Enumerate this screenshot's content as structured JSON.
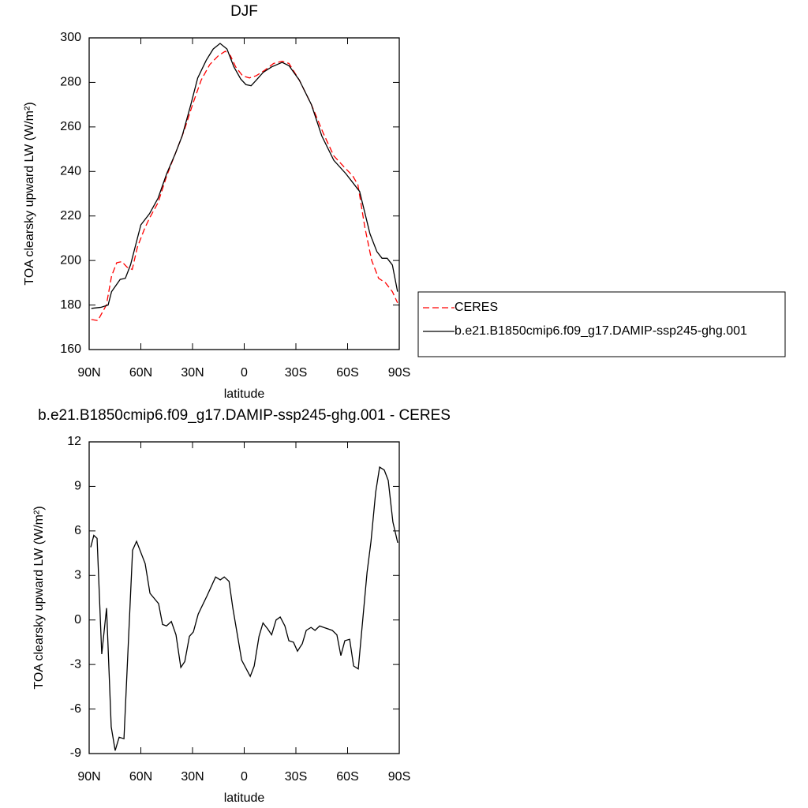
{
  "chart_data": [
    {
      "type": "line",
      "title": "DJF",
      "xlabel": "latitude",
      "ylabel": "TOA clearsky upward LW (W/m²)",
      "xlim": [
        90,
        -90
      ],
      "ylim": [
        160,
        300
      ],
      "xticks": [
        {
          "value": 90,
          "label": "90N"
        },
        {
          "value": 60,
          "label": "60N"
        },
        {
          "value": 30,
          "label": "30N"
        },
        0,
        {
          "value": -30,
          "label": "30S"
        },
        {
          "value": -60,
          "label": "60S"
        },
        {
          "value": -90,
          "label": "90S"
        }
      ],
      "yticks": [
        160,
        180,
        200,
        220,
        240,
        260,
        280,
        300
      ],
      "legend": "right",
      "series": [
        {
          "name": "CERES",
          "color": "#ff0000",
          "dash": "dashed",
          "x": [
            88.75,
            85,
            80,
            77,
            74,
            71,
            68,
            65,
            62,
            58,
            55,
            50,
            45,
            40,
            35,
            30,
            25,
            20,
            15,
            11,
            8,
            5,
            1,
            -3,
            -7,
            -12,
            -17,
            -22,
            -26,
            -32,
            -39,
            -46,
            -52,
            -58,
            -63,
            -66,
            -70,
            -74,
            -78,
            -82,
            -86,
            -89
          ],
          "values": [
            173.5,
            173,
            180,
            193,
            199,
            199.5,
            197,
            196,
            206,
            214,
            219,
            226,
            238,
            248,
            258,
            270,
            281,
            288,
            292,
            294,
            292,
            287,
            283,
            282,
            283,
            285.5,
            288.5,
            289.5,
            288.5,
            281,
            270,
            257,
            247,
            242,
            238,
            234,
            215,
            200,
            192,
            190,
            186,
            181
          ]
        },
        {
          "name": "b.e21.B1850cmip6.f09_g17.DAMIP-ssp245-ghg.001",
          "color": "#000000",
          "dash": "solid",
          "x": [
            88.75,
            83,
            79,
            77,
            72,
            69,
            66,
            60,
            55,
            50,
            45,
            40,
            36,
            31,
            27,
            22,
            18,
            14,
            10,
            6,
            2,
            -1,
            -4,
            -7,
            -11,
            -16,
            -22,
            -26,
            -32,
            -39,
            -45,
            -52,
            -59,
            -64,
            -67,
            -73,
            -77,
            -80,
            -83,
            -86,
            -89
          ],
          "values": [
            178.5,
            179,
            180,
            186,
            191.5,
            192,
            198,
            216,
            221,
            228,
            239,
            248,
            256,
            270,
            282,
            290,
            295,
            297.5,
            295,
            287,
            281.5,
            279,
            278.5,
            281,
            284.5,
            287,
            289,
            287.5,
            281,
            270,
            256,
            245,
            239,
            234,
            231,
            212,
            204,
            201,
            201,
            198,
            186
          ]
        }
      ]
    },
    {
      "type": "line",
      "title": "b.e21.B1850cmip6.f09_g17.DAMIP-ssp245-ghg.001 - CERES",
      "xlabel": "latitude",
      "ylabel": "TOA clearsky upward LW (W/m²)",
      "xlim": [
        90,
        -90
      ],
      "ylim": [
        -9,
        12
      ],
      "xticks": [
        {
          "value": 90,
          "label": "90N"
        },
        {
          "value": 60,
          "label": "60N"
        },
        {
          "value": 30,
          "label": "30N"
        },
        0,
        {
          "value": -30,
          "label": "30S"
        },
        {
          "value": -60,
          "label": "60S"
        },
        {
          "value": -90,
          "label": "90S"
        }
      ],
      "yticks": [
        -9,
        -6,
        -3,
        0,
        3,
        6,
        9,
        12
      ],
      "series": [
        {
          "color": "#000000",
          "dash": "solid",
          "x": [
            89.1,
            87.3,
            85.4,
            82.7,
            79.9,
            77.2,
            74.9,
            72.6,
            69.8,
            64.8,
            62.5,
            57.5,
            54.7,
            49.7,
            47.4,
            45.1,
            42.3,
            39.6,
            36.8,
            34.5,
            31.8,
            29.5,
            26.7,
            21.7,
            16.6,
            13.9,
            11.6,
            8.8,
            6.6,
            1.5,
            -3.5,
            -5.8,
            -8.6,
            -10.9,
            -13.6,
            -15.9,
            -18.5,
            -20.9,
            -23.6,
            -25.9,
            -28.6,
            -30.9,
            -33.7,
            -36.0,
            -38.8,
            -41.1,
            -43.8,
            -46.1,
            -51.1,
            -53.8,
            -56.1,
            -58.4,
            -61.2,
            -63.5,
            -66.2,
            -71.3,
            -73.6,
            -76.3,
            -78.6,
            -81.3,
            -83.6,
            -86.3,
            -89.1
          ],
          "values": [
            4.9,
            5.7,
            5.5,
            -2.3,
            0.8,
            -7.2,
            -8.8,
            -7.9,
            -8.0,
            4.7,
            5.3,
            3.8,
            1.8,
            1.1,
            -0.3,
            -0.4,
            -0.1,
            -1.0,
            -3.2,
            -2.8,
            -1.1,
            -0.8,
            0.4,
            1.6,
            2.9,
            2.7,
            2.9,
            2.6,
            0.8,
            -2.7,
            -3.8,
            -3.1,
            -1.1,
            -0.2,
            -0.6,
            -1.0,
            0.0,
            0.2,
            -0.4,
            -1.4,
            -1.5,
            -2.1,
            -1.6,
            -0.7,
            -0.5,
            -0.7,
            -0.4,
            -0.5,
            -0.7,
            -1.0,
            -2.4,
            -1.4,
            -1.3,
            -3.1,
            -3.3,
            3.2,
            5.3,
            8.6,
            10.3,
            10.1,
            9.4,
            6.6,
            5.2
          ]
        }
      ]
    }
  ]
}
